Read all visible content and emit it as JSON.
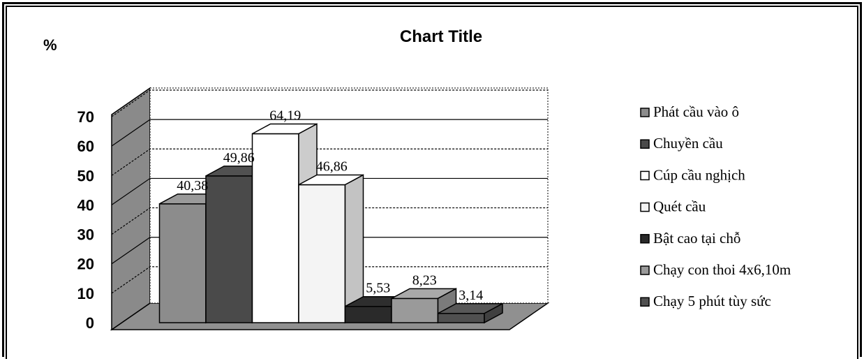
{
  "chart_data": {
    "type": "bar",
    "title": "Chart Title",
    "ylabel": "%",
    "xlabel": "",
    "ylim": [
      0,
      70
    ],
    "yticks": [
      0,
      10,
      20,
      30,
      40,
      50,
      60,
      70
    ],
    "grid": true,
    "legend_position": "right",
    "series": [
      {
        "name": "Phát cầu vào ô",
        "value": 40.38,
        "label": "40,38",
        "color": "#8c8c8c"
      },
      {
        "name": "Chuyền cầu",
        "value": 49.86,
        "label": "49,86",
        "color": "#4a4a4a"
      },
      {
        "name": "Cúp cầu nghịch",
        "value": 64.19,
        "label": "64,19",
        "color": "#ffffff"
      },
      {
        "name": "Quét cầu",
        "value": 46.86,
        "label": "46,86",
        "color": "#f4f4f4"
      },
      {
        "name": "Bật cao tại chỗ",
        "value": 5.53,
        "label": "5,53",
        "color": "#2a2a2a"
      },
      {
        "name": "Chạy con thoi 4x6,10m",
        "value": 8.23,
        "label": "8,23",
        "color": "#9a9a9a"
      },
      {
        "name": "Chạy 5 phút  tùy sức",
        "value": 3.14,
        "label": "3,14",
        "color": "#505050"
      }
    ],
    "wall_color": "#8a8a8a",
    "floor_color": "#909090"
  }
}
